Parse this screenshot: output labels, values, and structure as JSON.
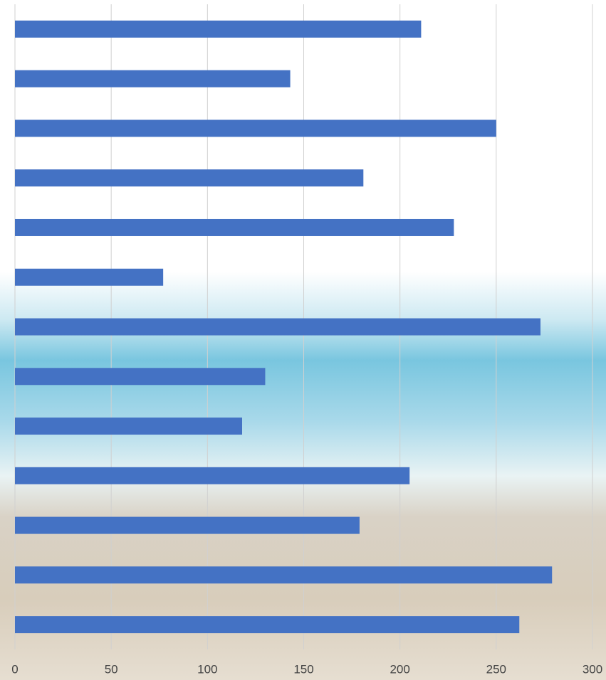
{
  "chart_data": {
    "type": "bar",
    "orientation": "horizontal",
    "categories": [
      null,
      null,
      null,
      null,
      null,
      null,
      null,
      null,
      null,
      null,
      null,
      null,
      null
    ],
    "values": [
      211,
      143,
      250,
      181,
      228,
      77,
      273,
      130,
      118,
      205,
      179,
      279,
      262
    ],
    "color": "#4472c4",
    "xlim": [
      0,
      300
    ],
    "xticks": [
      0,
      50,
      100,
      150,
      200,
      250,
      300
    ],
    "grid": true
  }
}
